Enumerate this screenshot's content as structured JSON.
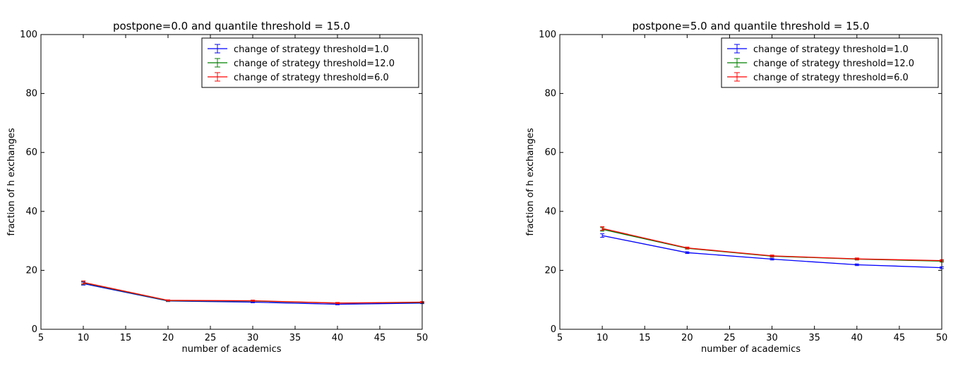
{
  "chart_data": [
    {
      "type": "line",
      "title": "postpone=0.0 and quantile threshold = 15.0",
      "xlabel": "number of academics",
      "ylabel": "fraction of h exchanges",
      "xlim": [
        5,
        50
      ],
      "ylim": [
        0,
        100
      ],
      "xticks": [
        "5",
        "10",
        "15",
        "20",
        "25",
        "30",
        "35",
        "40",
        "45",
        "50"
      ],
      "yticks": [
        "0",
        "20",
        "40",
        "60",
        "80",
        "100"
      ],
      "grid": false,
      "legend_position": "top-right",
      "x": [
        10,
        20,
        30,
        40,
        50
      ],
      "series": [
        {
          "name": "change of strategy threshold=1.0",
          "color": "#0000ff",
          "values": [
            15.5,
            9.6,
            9.2,
            8.5,
            8.9
          ],
          "errors": [
            0.5,
            0.2,
            0.2,
            0.2,
            0.2
          ]
        },
        {
          "name": "change of strategy threshold=12.0",
          "color": "#008000",
          "values": [
            15.8,
            9.7,
            9.6,
            8.9,
            9.1
          ],
          "errors": [
            0.5,
            0.2,
            0.2,
            0.2,
            0.2
          ]
        },
        {
          "name": "change of strategy threshold=6.0",
          "color": "#ff0000",
          "values": [
            15.9,
            9.8,
            9.7,
            8.9,
            9.2
          ],
          "errors": [
            0.5,
            0.2,
            0.2,
            0.2,
            0.2
          ]
        }
      ]
    },
    {
      "type": "line",
      "title": "postpone=5.0 and quantile threshold = 15.0",
      "xlabel": "number of academics",
      "ylabel": "fraction of h exchanges",
      "xlim": [
        5,
        50
      ],
      "ylim": [
        0,
        100
      ],
      "xticks": [
        "5",
        "10",
        "15",
        "20",
        "25",
        "30",
        "35",
        "40",
        "45",
        "50"
      ],
      "yticks": [
        "0",
        "20",
        "40",
        "60",
        "80",
        "100"
      ],
      "grid": false,
      "legend_position": "top-right",
      "x": [
        10,
        20,
        30,
        40,
        50
      ],
      "series": [
        {
          "name": "change of strategy threshold=1.0",
          "color": "#0000ff",
          "values": [
            31.8,
            26.0,
            23.8,
            21.9,
            20.9
          ],
          "errors": [
            0.6,
            0.3,
            0.3,
            0.3,
            0.3
          ]
        },
        {
          "name": "change of strategy threshold=12.0",
          "color": "#008000",
          "values": [
            33.9,
            27.5,
            24.8,
            23.8,
            23.1
          ],
          "errors": [
            0.6,
            0.3,
            0.3,
            0.3,
            0.3
          ]
        },
        {
          "name": "change of strategy threshold=6.0",
          "color": "#ff0000",
          "values": [
            34.2,
            27.6,
            24.9,
            23.9,
            23.3
          ],
          "errors": [
            0.6,
            0.3,
            0.3,
            0.3,
            0.3
          ]
        }
      ]
    }
  ]
}
